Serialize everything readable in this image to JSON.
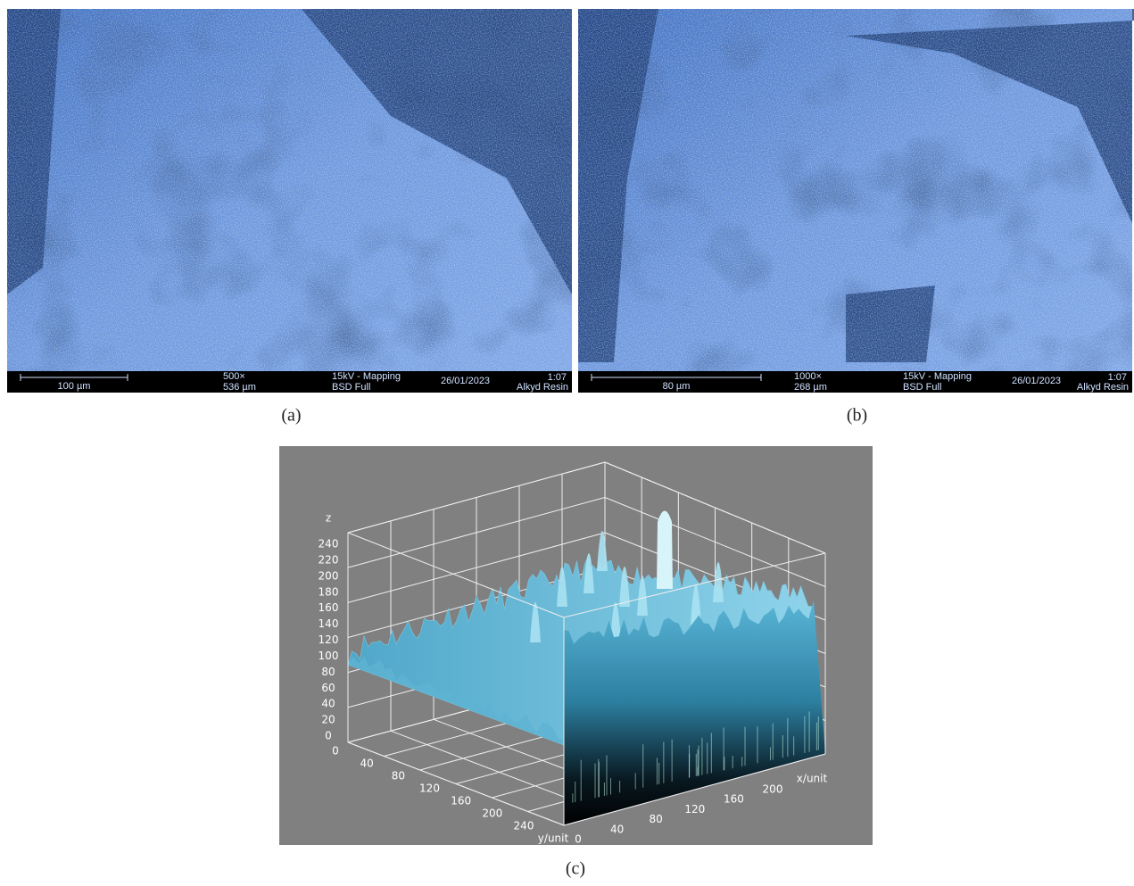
{
  "panels": [
    {
      "label": "(a)",
      "scale": "100 µm",
      "magnification": "500×",
      "field": "536 µm",
      "mode": "15kV - Mapping",
      "detector": "BSD Full",
      "date": "26/01/2023",
      "time": "1:07",
      "sample": "Alkyd Resin"
    },
    {
      "label": "(b)",
      "scale": "80 µm",
      "magnification": "1000×",
      "field": "268 µm",
      "mode": "15kV - Mapping",
      "detector": "BSD Full",
      "date": "26/01/2023",
      "time": "1:07",
      "sample": "Alkyd Resin"
    }
  ],
  "surface": {
    "label": "(c)",
    "z_label": "z",
    "x_label": "x/unit",
    "y_label": "y/unit",
    "z_ticks": [
      0,
      20,
      40,
      60,
      80,
      100,
      120,
      140,
      160,
      180,
      200,
      220,
      240
    ],
    "y_ticks": [
      0,
      40,
      80,
      120,
      160,
      200,
      240
    ],
    "x_ticks": [
      0,
      40,
      80,
      120,
      160,
      200
    ]
  }
}
